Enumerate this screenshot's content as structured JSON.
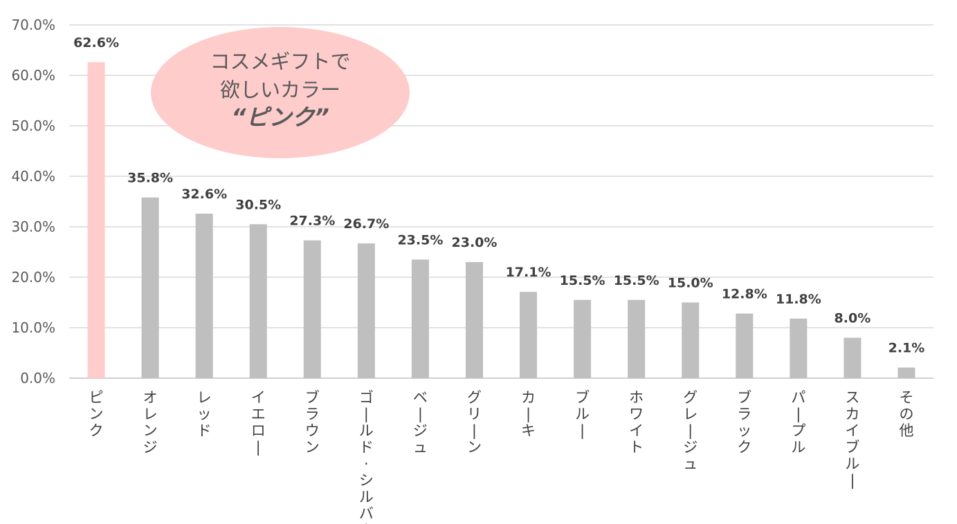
{
  "chart_data": {
    "type": "bar",
    "categories": [
      "ピンク",
      "オレンジ",
      "レッド",
      "イエロー",
      "ブラウン",
      "ゴールド･シルバー",
      "ベージュ",
      "グリーン",
      "カーキ",
      "ブルー",
      "ホワイト",
      "グレージュ",
      "ブラック",
      "パープル",
      "スカイブルー",
      "その他"
    ],
    "values": [
      62.6,
      35.8,
      32.6,
      30.5,
      27.3,
      26.7,
      23.5,
      23.0,
      17.1,
      15.5,
      15.5,
      15.0,
      12.8,
      11.8,
      8.0,
      2.1
    ],
    "data_labels": [
      "62.6%",
      "35.8%",
      "32.6%",
      "30.5%",
      "27.3%",
      "26.7%",
      "23.5%",
      "23.0%",
      "17.1%",
      "15.5%",
      "15.5%",
      "15.0%",
      "12.8%",
      "11.8%",
      "8.0%",
      "2.1%"
    ],
    "y_ticks": [
      "0.0%",
      "10.0%",
      "20.0%",
      "30.0%",
      "40.0%",
      "50.0%",
      "60.0%",
      "70.0%"
    ],
    "ylim": [
      0,
      70
    ],
    "grid": true,
    "highlight_index": 0,
    "colors": {
      "highlight": "#FFCCCC",
      "bar": "#BFBFBF",
      "grid": "#D9D9D9",
      "callout": "#FFCCCC"
    },
    "callout": {
      "line1": "コスメギフトで",
      "line2": "欲しいカラー",
      "line3": "“ピンク”"
    }
  }
}
